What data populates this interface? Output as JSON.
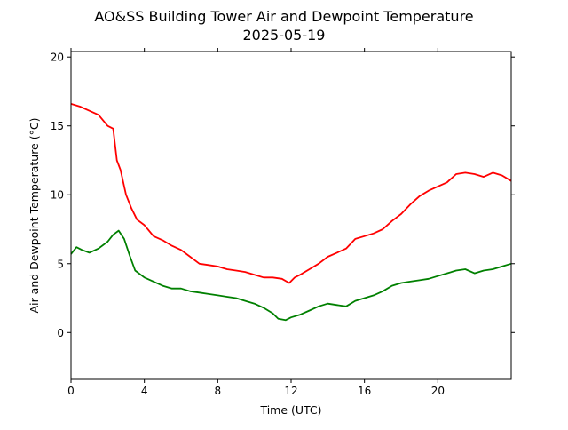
{
  "chart_data": {
    "type": "line",
    "title": "AO&SS Building Tower Air and Dewpoint Temperature",
    "subtitle": "2025-05-19",
    "xlabel": "Time (UTC)",
    "ylabel": "Air and Dewpoint Temperature (°C)",
    "xlim": [
      0,
      24
    ],
    "ylim": [
      -3.4,
      20.4
    ],
    "xticks": [
      0,
      4,
      8,
      12,
      16,
      20
    ],
    "yticks": [
      0,
      5,
      10,
      15,
      20
    ],
    "grid": false,
    "series": [
      {
        "color": "#ff0000",
        "x": [
          0,
          0.5,
          1,
          1.5,
          2,
          2.3,
          2.5,
          2.7,
          3,
          3.3,
          3.6,
          4,
          4.5,
          5,
          5.5,
          6,
          6.5,
          7,
          7.5,
          8,
          8.5,
          9,
          9.5,
          10,
          10.5,
          11,
          11.5,
          11.9,
          12.2,
          12.5,
          13,
          13.5,
          14,
          14.5,
          15,
          15.5,
          16,
          16.5,
          17,
          17.5,
          18,
          18.5,
          19,
          19.5,
          20,
          20.5,
          21,
          21.5,
          22,
          22.5,
          23,
          23.5,
          24
        ],
        "y": [
          16.6,
          16.4,
          16.1,
          15.8,
          15.0,
          14.8,
          12.5,
          11.8,
          10.0,
          9.0,
          8.2,
          7.8,
          7.0,
          6.7,
          6.3,
          6.0,
          5.5,
          5.0,
          4.9,
          4.8,
          4.6,
          4.5,
          4.4,
          4.2,
          4.0,
          4.0,
          3.9,
          3.6,
          4.0,
          4.2,
          4.6,
          5.0,
          5.5,
          5.8,
          6.1,
          6.8,
          7.0,
          7.2,
          7.5,
          8.1,
          8.6,
          9.3,
          9.9,
          10.3,
          10.6,
          10.9,
          11.5,
          11.6,
          11.5,
          11.3,
          11.6,
          11.4,
          11.0
        ]
      },
      {
        "color": "#008000",
        "x": [
          0,
          0.3,
          0.6,
          1,
          1.5,
          2,
          2.3,
          2.6,
          2.9,
          3.2,
          3.5,
          4,
          4.5,
          5,
          5.5,
          6,
          6.5,
          7,
          7.5,
          8,
          8.5,
          9,
          9.5,
          10,
          10.5,
          11,
          11.3,
          11.7,
          12,
          12.5,
          13,
          13.5,
          14,
          14.5,
          15,
          15.5,
          16,
          16.5,
          17,
          17.5,
          18,
          18.5,
          19,
          19.5,
          20,
          20.5,
          21,
          21.5,
          22,
          22.5,
          23,
          23.5,
          24
        ],
        "y": [
          5.7,
          6.2,
          6.0,
          5.8,
          6.1,
          6.6,
          7.1,
          7.4,
          6.8,
          5.6,
          4.5,
          4.0,
          3.7,
          3.4,
          3.2,
          3.2,
          3.0,
          2.9,
          2.8,
          2.7,
          2.6,
          2.5,
          2.3,
          2.1,
          1.8,
          1.4,
          1.0,
          0.9,
          1.1,
          1.3,
          1.6,
          1.9,
          2.1,
          2.0,
          1.9,
          2.3,
          2.5,
          2.7,
          3.0,
          3.4,
          3.6,
          3.7,
          3.8,
          3.9,
          4.1,
          4.3,
          4.5,
          4.6,
          4.3,
          4.5,
          4.6,
          4.8,
          5.0
        ]
      }
    ]
  }
}
